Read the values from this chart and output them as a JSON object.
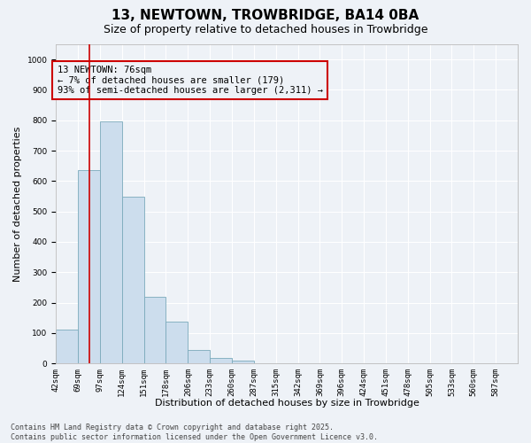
{
  "title": "13, NEWTOWN, TROWBRIDGE, BA14 0BA",
  "subtitle": "Size of property relative to detached houses in Trowbridge",
  "xlabel": "Distribution of detached houses by size in Trowbridge",
  "ylabel": "Number of detached properties",
  "bar_color": "#ccdded",
  "bar_edge_color": "#7aaabb",
  "background_color": "#eef2f7",
  "grid_color": "#ffffff",
  "annotation_text": "13 NEWTOWN: 76sqm\n← 7% of detached houses are smaller (179)\n93% of semi-detached houses are larger (2,311) →",
  "vline_index": 1.5,
  "vline_color": "#cc0000",
  "ylim": [
    0,
    1050
  ],
  "yticks": [
    0,
    100,
    200,
    300,
    400,
    500,
    600,
    700,
    800,
    900,
    1000
  ],
  "categories": [
    "42sqm",
    "69sqm",
    "97sqm",
    "124sqm",
    "151sqm",
    "178sqm",
    "206sqm",
    "233sqm",
    "260sqm",
    "287sqm",
    "315sqm",
    "342sqm",
    "369sqm",
    "396sqm",
    "424sqm",
    "451sqm",
    "478sqm",
    "505sqm",
    "533sqm",
    "560sqm",
    "587sqm"
  ],
  "values": [
    110,
    635,
    795,
    548,
    220,
    138,
    43,
    18,
    10,
    0,
    0,
    0,
    0,
    0,
    0,
    0,
    0,
    0,
    0,
    0,
    0
  ],
  "footer": "Contains HM Land Registry data © Crown copyright and database right 2025.\nContains public sector information licensed under the Open Government Licence v3.0.",
  "title_fontsize": 11,
  "subtitle_fontsize": 9,
  "tick_fontsize": 6.5,
  "ylabel_fontsize": 8,
  "xlabel_fontsize": 8,
  "annotation_fontsize": 7.5,
  "footer_fontsize": 6
}
